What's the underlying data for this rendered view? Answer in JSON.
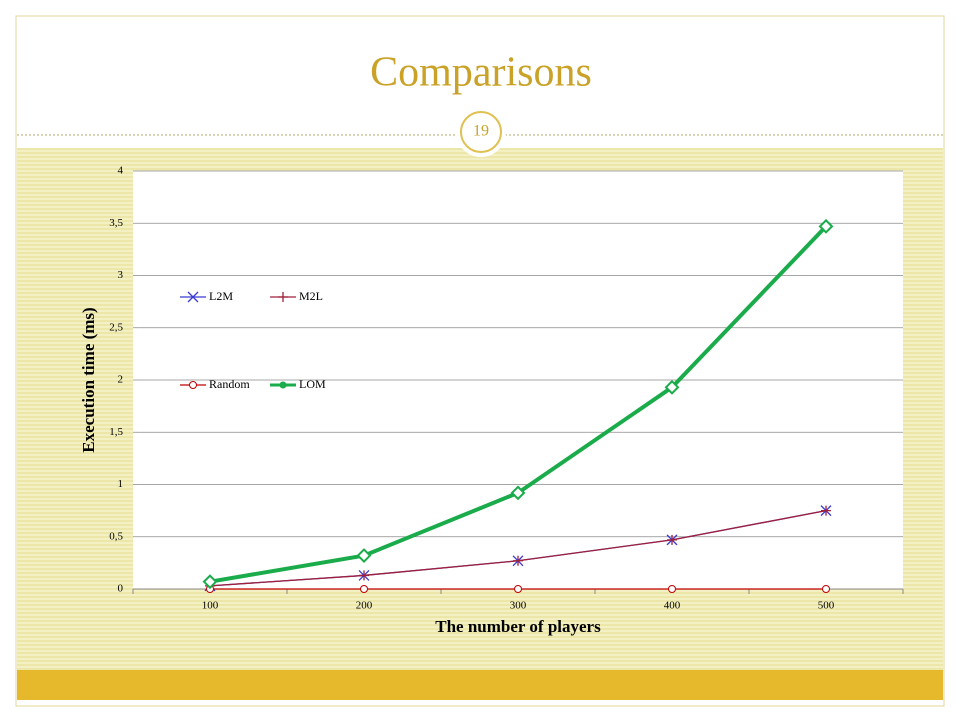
{
  "page_number": "19",
  "chart_data": {
    "type": "line",
    "title": "Comparisons",
    "x_label": "The number of players",
    "y_label": "Execution time (ms)",
    "categories": [
      "100",
      "200",
      "300",
      "400",
      "500"
    ],
    "series": [
      {
        "name": "L2M",
        "color": "#3a3ad0",
        "marker": "x",
        "values": [
          0.03,
          0.13,
          0.27,
          0.47,
          0.75
        ]
      },
      {
        "name": "M2L",
        "color": "#a0203a",
        "marker": "+",
        "values": [
          0.03,
          0.13,
          0.27,
          0.47,
          0.75
        ]
      },
      {
        "name": "Random",
        "color": "#c00000",
        "marker": "circle",
        "values": [
          0,
          0,
          0,
          0,
          0
        ]
      },
      {
        "name": "LOM",
        "color": "#1aab4a",
        "marker": "diamond",
        "values": [
          0.07,
          0.32,
          0.92,
          1.93,
          3.47
        ]
      }
    ],
    "ylim": [
      0,
      4
    ],
    "yticks": [
      0,
      {
        "value": 0.5,
        "label": "0,5"
      },
      1,
      {
        "value": 1.5,
        "label": "1,5"
      },
      2,
      {
        "value": 2.5,
        "label": "2,5"
      },
      3,
      {
        "value": 3.5,
        "label": "3,5"
      },
      4
    ],
    "grid": true
  }
}
